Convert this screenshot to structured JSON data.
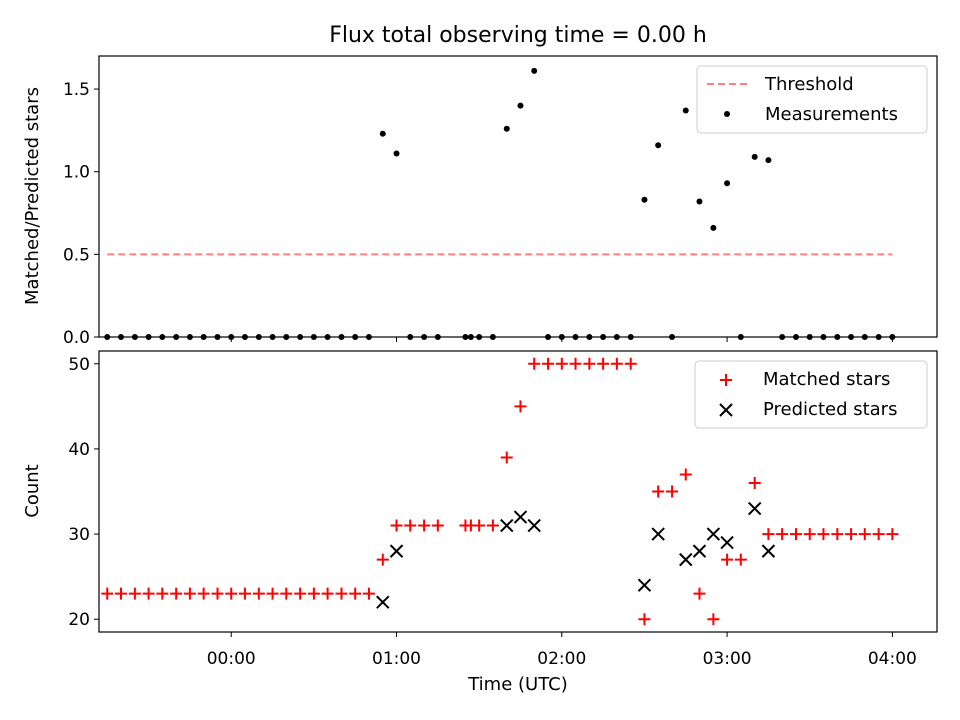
{
  "chart_data": [
    {
      "type": "scatter",
      "title": "Flux total observing time = 0.00 h",
      "xlabel": "",
      "ylabel": "Matched/Predicted stars",
      "xlim": [
        -0.8,
        4.27
      ],
      "ylim": [
        0,
        1.7
      ],
      "yticks": [
        0.0,
        0.5,
        1.0,
        1.5
      ],
      "ytick_labels": [
        "0.0",
        "0.5",
        "1.0",
        "1.5"
      ],
      "xticks": [
        0,
        1,
        2,
        3,
        4
      ],
      "legend_position": "top-right",
      "series": [
        {
          "name": "Threshold",
          "kind": "line",
          "style": "dashed",
          "color": "#ff7f7f",
          "x": [
            -0.75,
            4.0
          ],
          "y": [
            0.5,
            0.5
          ]
        },
        {
          "name": "Measurements",
          "kind": "scatter",
          "marker": "dot",
          "color": "#000000",
          "x": [
            -0.75,
            -0.667,
            -0.583,
            -0.5,
            -0.417,
            -0.333,
            -0.25,
            -0.167,
            -0.083,
            0.0,
            0.083,
            0.167,
            0.25,
            0.333,
            0.417,
            0.5,
            0.583,
            0.667,
            0.75,
            0.833,
            0.917,
            1.0,
            1.083,
            1.167,
            1.25,
            1.417,
            1.45,
            1.5,
            1.583,
            1.667,
            1.75,
            1.833,
            1.917,
            2.0,
            2.083,
            2.167,
            2.25,
            2.333,
            2.417,
            2.5,
            2.583,
            2.667,
            2.75,
            2.833,
            2.917,
            3.0,
            3.083,
            3.167,
            3.25,
            3.333,
            3.417,
            3.5,
            3.583,
            3.667,
            3.75,
            3.833,
            3.917,
            4.0
          ],
          "y": [
            0,
            0,
            0,
            0,
            0,
            0,
            0,
            0,
            0,
            0,
            0,
            0,
            0,
            0,
            0,
            0,
            0,
            0,
            0,
            0,
            1.23,
            1.11,
            0,
            0,
            0,
            0,
            0,
            0,
            0,
            1.26,
            1.4,
            1.61,
            0,
            0,
            0,
            0,
            0,
            0,
            0,
            0.83,
            1.16,
            0,
            1.37,
            0.82,
            0.66,
            0.93,
            0,
            1.09,
            1.07,
            0,
            0,
            0,
            0,
            0,
            0,
            0,
            0,
            0
          ]
        }
      ]
    },
    {
      "type": "scatter",
      "title": "",
      "xlabel": "Time (UTC)",
      "ylabel": "Count",
      "xlim": [
        -0.8,
        4.27
      ],
      "ylim": [
        18.5,
        51.5
      ],
      "yticks": [
        20,
        30,
        40,
        50
      ],
      "ytick_labels": [
        "20",
        "30",
        "40",
        "50"
      ],
      "xticks": [
        0,
        1,
        2,
        3,
        4
      ],
      "xtick_labels": [
        "00:00",
        "01:00",
        "02:00",
        "03:00",
        "04:00"
      ],
      "legend_position": "top-right",
      "series": [
        {
          "name": "Matched stars",
          "kind": "scatter",
          "marker": "plus",
          "color": "#ff0000",
          "x": [
            -0.75,
            -0.667,
            -0.583,
            -0.5,
            -0.417,
            -0.333,
            -0.25,
            -0.167,
            -0.083,
            0.0,
            0.083,
            0.167,
            0.25,
            0.333,
            0.417,
            0.5,
            0.583,
            0.667,
            0.75,
            0.833,
            0.917,
            1.0,
            1.083,
            1.167,
            1.25,
            1.417,
            1.45,
            1.5,
            1.583,
            1.667,
            1.75,
            1.833,
            1.917,
            2.0,
            2.083,
            2.167,
            2.25,
            2.333,
            2.417,
            2.5,
            2.583,
            2.667,
            2.75,
            2.833,
            2.917,
            3.0,
            3.083,
            3.167,
            3.25,
            3.333,
            3.417,
            3.5,
            3.583,
            3.667,
            3.75,
            3.833,
            3.917,
            4.0
          ],
          "y": [
            23,
            23,
            23,
            23,
            23,
            23,
            23,
            23,
            23,
            23,
            23,
            23,
            23,
            23,
            23,
            23,
            23,
            23,
            23,
            23,
            27,
            31,
            31,
            31,
            31,
            31,
            31,
            31,
            31,
            39,
            45,
            50,
            50,
            50,
            50,
            50,
            50,
            50,
            50,
            20,
            35,
            35,
            37,
            23,
            20,
            27,
            27,
            36,
            30,
            30,
            30,
            30,
            30,
            30,
            30,
            30,
            30,
            30
          ]
        },
        {
          "name": "Predicted stars",
          "kind": "scatter",
          "marker": "x",
          "color": "#000000",
          "x": [
            0.917,
            1.0,
            1.667,
            1.75,
            1.833,
            2.5,
            2.583,
            2.75,
            2.833,
            2.917,
            3.0,
            3.167,
            3.25
          ],
          "y": [
            22,
            28,
            31,
            32,
            31,
            24,
            30,
            27,
            28,
            30,
            29,
            33,
            28
          ]
        }
      ]
    }
  ]
}
